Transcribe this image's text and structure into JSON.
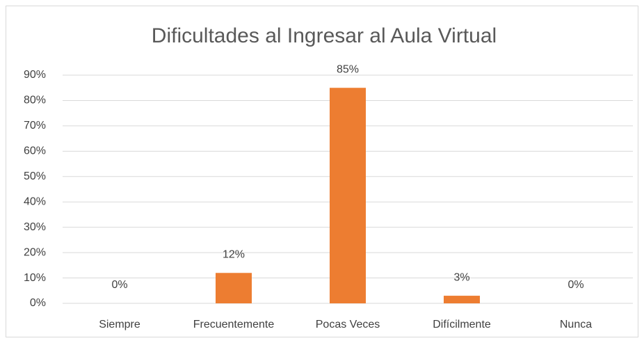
{
  "chart_data": {
    "type": "bar",
    "title": "Dificultades al Ingresar al Aula Virtual",
    "categories": [
      "Siempre",
      "Frecuentemente",
      "Pocas Veces",
      "Difícilmente",
      "Nunca"
    ],
    "values": [
      0,
      12,
      85,
      3,
      0
    ],
    "value_labels": [
      "0%",
      "12%",
      "85%",
      "3%",
      "0%"
    ],
    "color": "#ed7d31",
    "ylim": [
      0,
      90
    ],
    "yticks": [
      {
        "value": 0,
        "label": "0%"
      },
      {
        "value": 10,
        "label": "10%"
      },
      {
        "value": 20,
        "label": "20%"
      },
      {
        "value": 30,
        "label": "30%"
      },
      {
        "value": 40,
        "label": "40%"
      },
      {
        "value": 50,
        "label": "50%"
      },
      {
        "value": 60,
        "label": "60%"
      },
      {
        "value": 70,
        "label": "70%"
      },
      {
        "value": 80,
        "label": "80%"
      },
      {
        "value": 90,
        "label": "90%"
      }
    ],
    "grid": true
  }
}
